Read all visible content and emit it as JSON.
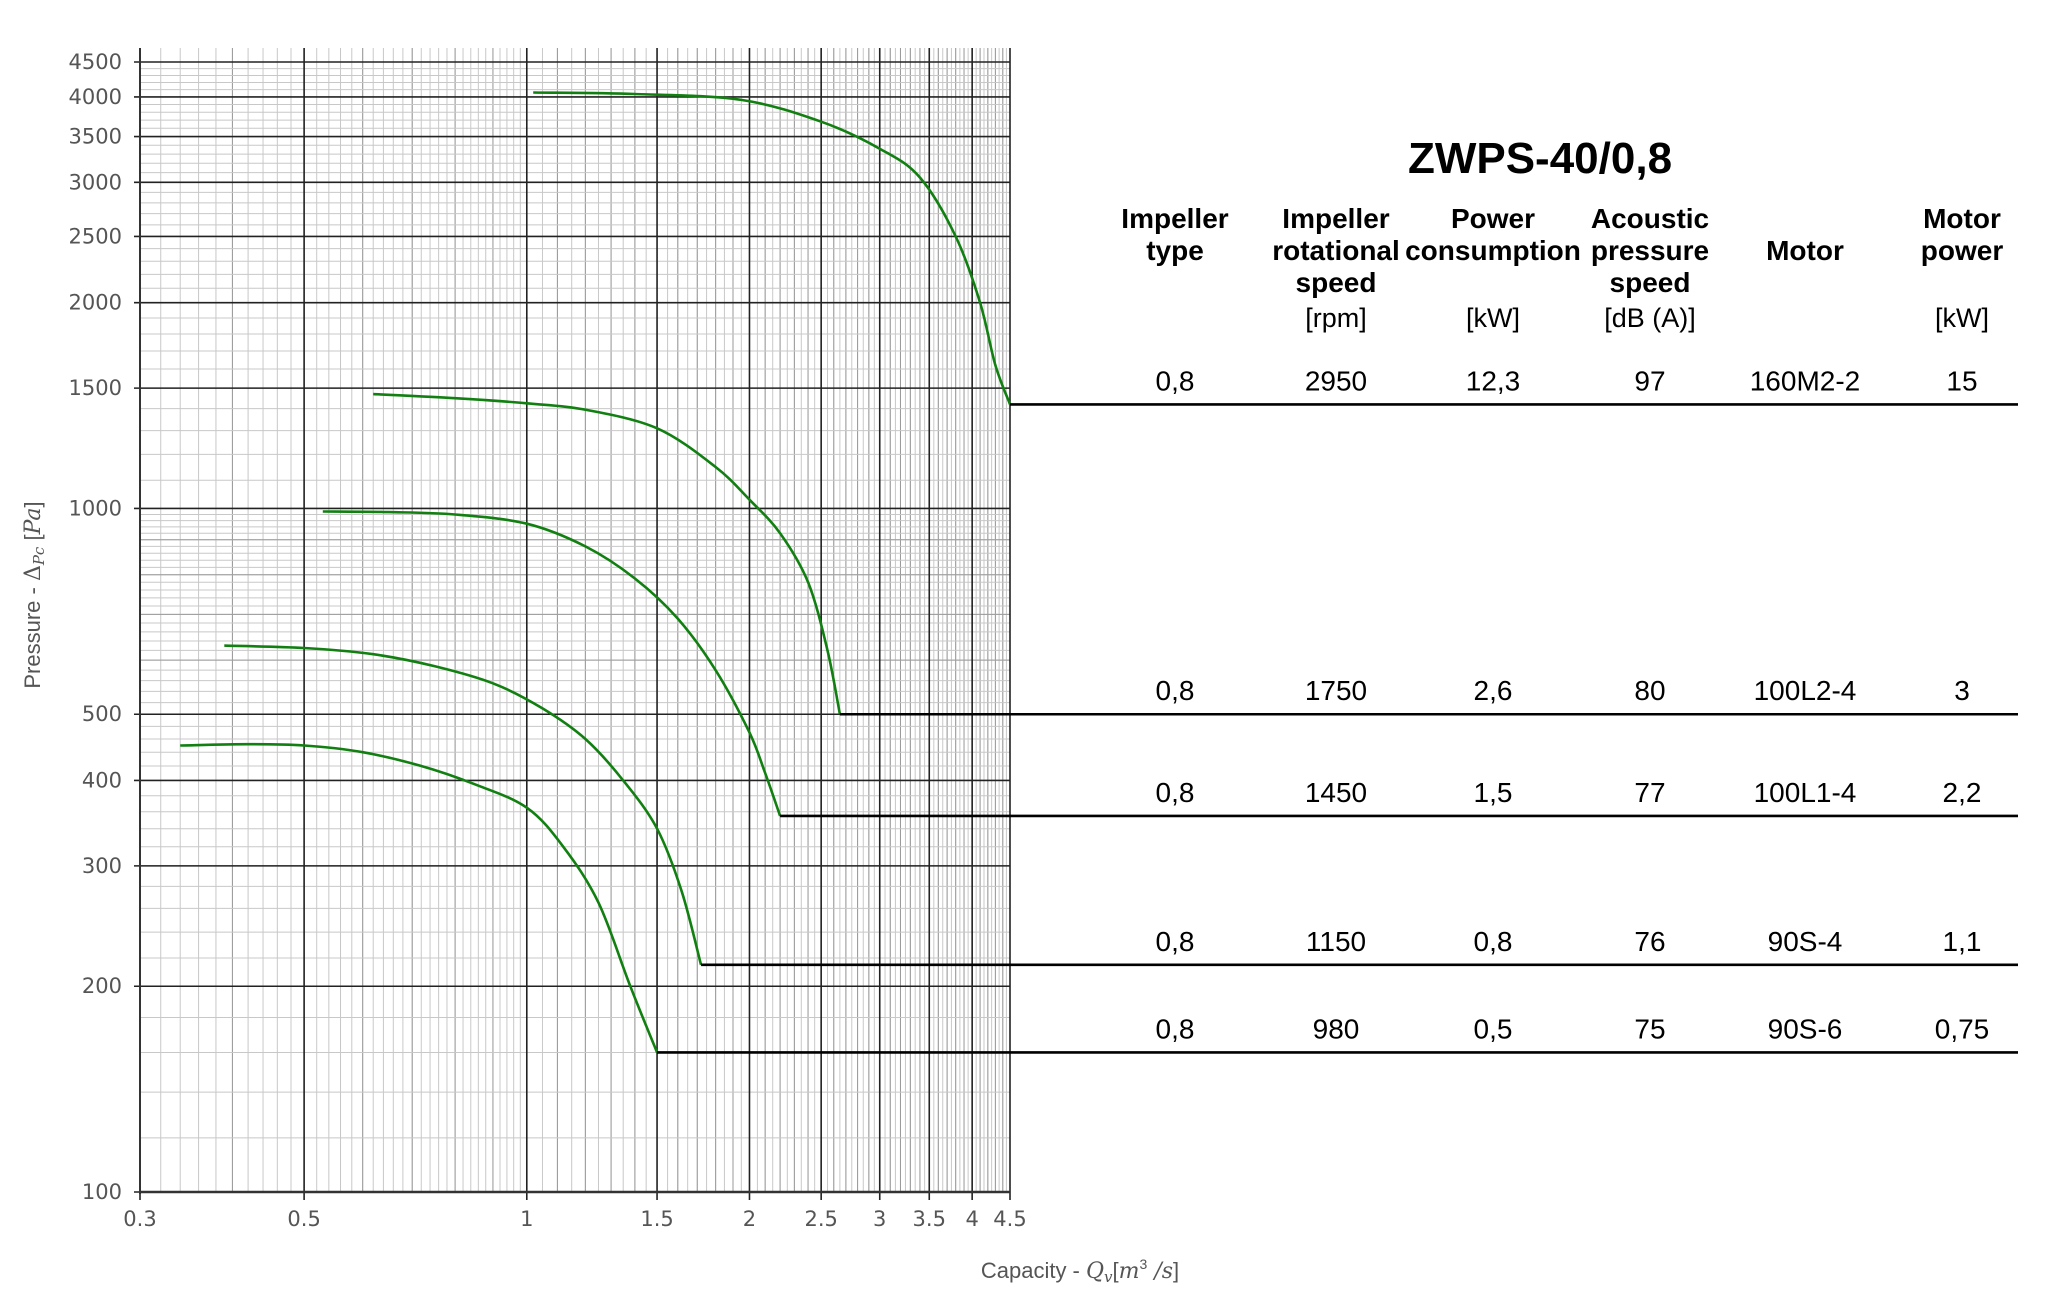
{
  "chart_data": {
    "type": "line",
    "title": "ZWPS-40/0,8",
    "xlabel": {
      "prefix": "Capacity - ",
      "symbol": "Q",
      "sub": "v",
      "unit_base": "m",
      "unit_exp": "3",
      "unit_tail": " /s"
    },
    "ylabel": {
      "prefix": "Pressure - ",
      "symbol": "Δ",
      "sub": "Pc",
      "unit": "Pa"
    },
    "x_scale": "log",
    "y_scale": "log",
    "xlim": [
      0.3,
      4.5
    ],
    "ylim": [
      100,
      4500
    ],
    "x_ticks": [
      "0.3",
      "0.5",
      "1",
      "1.5",
      "2",
      "2.5",
      "3",
      "3.5",
      "4",
      "4.5"
    ],
    "y_ticks": [
      "100",
      "200",
      "300",
      "400",
      "500",
      "1000",
      "1500",
      "2000",
      "2500",
      "3000",
      "3500",
      "4000",
      "4500"
    ],
    "grid": true,
    "line_color": "#118011",
    "series": [
      {
        "points": [
          [
            1.02,
            4060
          ],
          [
            1.4,
            4040
          ],
          [
            1.95,
            3960
          ],
          [
            2.5,
            3680
          ],
          [
            3.0,
            3360
          ],
          [
            3.4,
            3050
          ],
          [
            3.8,
            2500
          ],
          [
            4.1,
            2000
          ],
          [
            4.3,
            1620
          ],
          [
            4.5,
            1420
          ]
        ]
      },
      {
        "points": [
          [
            0.62,
            1470
          ],
          [
            0.8,
            1450
          ],
          [
            1.0,
            1425
          ],
          [
            1.2,
            1395
          ],
          [
            1.5,
            1310
          ],
          [
            1.8,
            1150
          ],
          [
            2.0,
            1030
          ],
          [
            2.2,
            920
          ],
          [
            2.4,
            780
          ],
          [
            2.55,
            620
          ],
          [
            2.65,
            500
          ]
        ]
      },
      {
        "points": [
          [
            0.53,
            990
          ],
          [
            0.65,
            988
          ],
          [
            0.8,
            980
          ],
          [
            1.0,
            950
          ],
          [
            1.2,
            880
          ],
          [
            1.4,
            790
          ],
          [
            1.6,
            690
          ],
          [
            1.8,
            580
          ],
          [
            2.0,
            470
          ],
          [
            2.1,
            410
          ],
          [
            2.2,
            355
          ]
        ]
      },
      {
        "points": [
          [
            0.39,
            630
          ],
          [
            0.5,
            625
          ],
          [
            0.62,
            612
          ],
          [
            0.75,
            588
          ],
          [
            0.9,
            555
          ],
          [
            1.05,
            510
          ],
          [
            1.2,
            460
          ],
          [
            1.35,
            400
          ],
          [
            1.5,
            340
          ],
          [
            1.62,
            275
          ],
          [
            1.72,
            215
          ]
        ]
      },
      {
        "points": [
          [
            0.34,
            450
          ],
          [
            0.42,
            452
          ],
          [
            0.5,
            450
          ],
          [
            0.6,
            440
          ],
          [
            0.72,
            420
          ],
          [
            0.85,
            395
          ],
          [
            1.0,
            365
          ],
          [
            1.12,
            320
          ],
          [
            1.25,
            265
          ],
          [
            1.38,
            200
          ],
          [
            1.5,
            160
          ]
        ]
      }
    ],
    "table": {
      "header_lines": [
        [
          "Impeller",
          "type"
        ],
        [
          "Impeller",
          "rotational",
          "speed"
        ],
        [
          "Power",
          "consumption"
        ],
        [
          "Acoustic",
          "pressure",
          "speed"
        ],
        [
          "Motor"
        ],
        [
          "Motor",
          "power"
        ]
      ],
      "units": [
        "",
        "[rpm]",
        "[kW]",
        "[dB (A)]",
        "",
        "[kW]"
      ],
      "rows": [
        {
          "cells": [
            "0,8",
            "2950",
            "12,3",
            "97",
            "160M2-2",
            "15"
          ],
          "end_x": 4.5,
          "pressure": 1420
        },
        {
          "cells": [
            "0,8",
            "1750",
            "2,6",
            "80",
            "100L2-4",
            "3"
          ],
          "end_x": 2.65,
          "pressure": 500
        },
        {
          "cells": [
            "0,8",
            "1450",
            "1,5",
            "77",
            "100L1-4",
            "2,2"
          ],
          "end_x": 2.2,
          "pressure": 355
        },
        {
          "cells": [
            "0,8",
            "1150",
            "0,8",
            "76",
            "90S-4",
            "1,1"
          ],
          "end_x": 1.72,
          "pressure": 215
        },
        {
          "cells": [
            "0,8",
            "980",
            "0,5",
            "75",
            "90S-6",
            "0,75"
          ],
          "end_x": 1.5,
          "pressure": 160
        }
      ]
    }
  }
}
